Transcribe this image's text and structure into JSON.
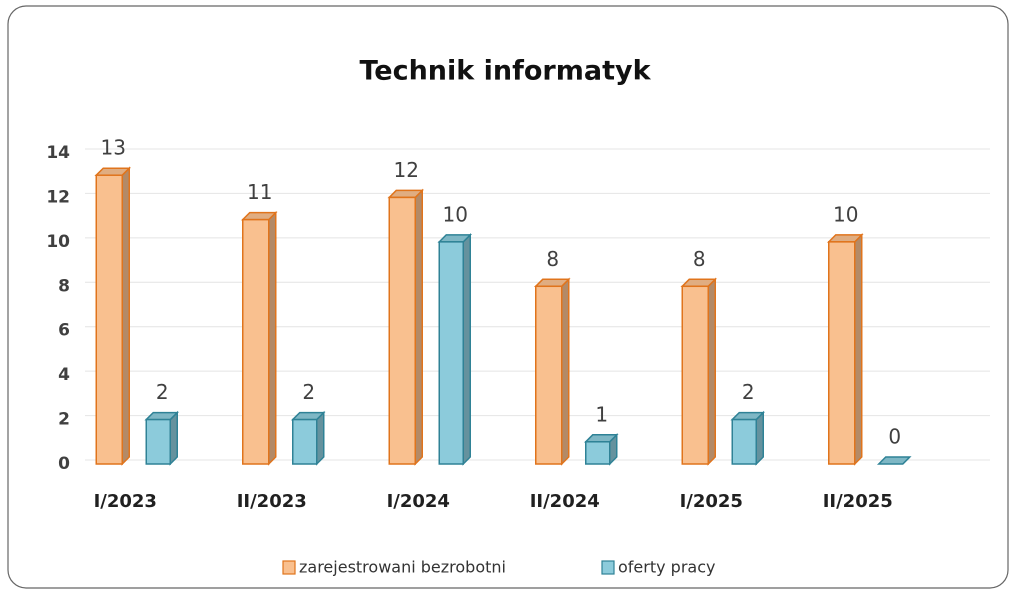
{
  "chart_data": {
    "type": "bar3d",
    "title": "Technik informatyk",
    "categories": [
      "I/2023",
      "II/2023",
      "I/2024",
      "II/2024",
      "I/2025",
      "II/2025"
    ],
    "series": [
      {
        "name": "zarejestrowani bezrobotni",
        "color": "#f9c08f",
        "values": [
          13,
          11,
          12,
          8,
          8,
          10
        ]
      },
      {
        "name": "oferty pracy",
        "color": "#8ccbdb",
        "values": [
          2,
          2,
          10,
          1,
          2,
          0
        ]
      }
    ],
    "ylim": [
      0,
      14
    ],
    "yticks": [
      0,
      2,
      4,
      6,
      8,
      10,
      12,
      14
    ],
    "grid": true,
    "legend": "bottom"
  }
}
